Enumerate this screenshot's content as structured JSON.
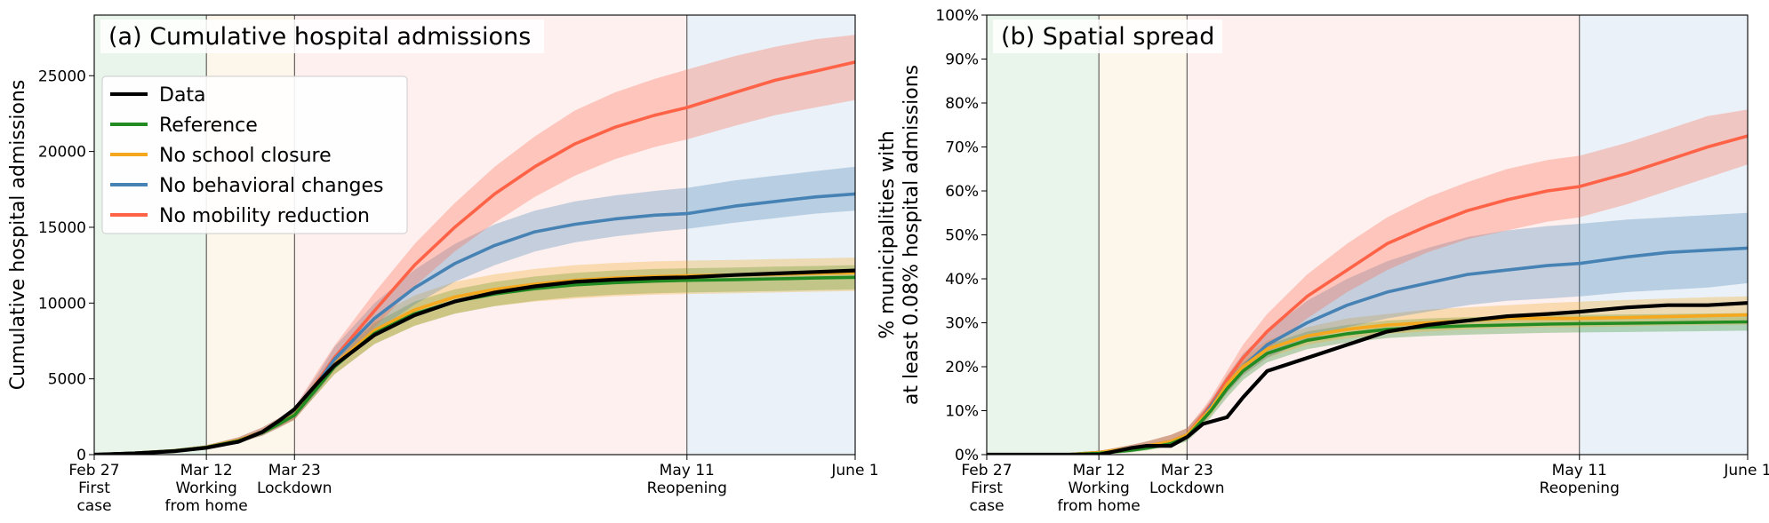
{
  "phase_colors": {
    "pre": "#e9f5ea",
    "wfh": "#fdf6ea",
    "lockdown": "#fdf0ef",
    "reopen": "#eaf1f8"
  },
  "chart_data": [
    {
      "type": "line",
      "title": "(a) Cumulative hospital admissions",
      "xlabel": "",
      "ylabel": "Cumulative hospital admissions",
      "xlim": [
        0,
        95
      ],
      "ylim": [
        0,
        29000
      ],
      "grid": false,
      "legend_position": "upper-left",
      "y_ticks": [
        0,
        5000,
        10000,
        15000,
        20000,
        25000
      ],
      "y_tick_labels": [
        "0",
        "5000",
        "10000",
        "15000",
        "20000",
        "25000"
      ],
      "x_ticks": [
        {
          "day": 0,
          "lines": [
            "Feb 27",
            "First",
            "case"
          ]
        },
        {
          "day": 14,
          "lines": [
            "Mar 12",
            "Working",
            "from home"
          ]
        },
        {
          "day": 25,
          "lines": [
            "Mar 23",
            "Lockdown"
          ]
        },
        {
          "day": 74,
          "lines": [
            "May 11",
            "Reopening"
          ]
        },
        {
          "day": 95,
          "lines": [
            "June 1"
          ]
        }
      ],
      "vlines": [
        14,
        25,
        74
      ],
      "phases": [
        {
          "from": 0,
          "to": 14,
          "color_key": "pre"
        },
        {
          "from": 14,
          "to": 25,
          "color_key": "wfh"
        },
        {
          "from": 25,
          "to": 74,
          "color_key": "lockdown"
        },
        {
          "from": 74,
          "to": 95,
          "color_key": "reopen"
        }
      ],
      "x": [
        0,
        5,
        10,
        14,
        18,
        21,
        23,
        25,
        28,
        30,
        35,
        40,
        45,
        50,
        55,
        60,
        65,
        70,
        74,
        80,
        85,
        90,
        95
      ],
      "series": [
        {
          "name": "Data",
          "color": "#000000",
          "values": [
            0,
            80,
            230,
            450,
            850,
            1500,
            2200,
            3000,
            4800,
            5900,
            7900,
            9200,
            10100,
            10700,
            11100,
            11400,
            11550,
            11650,
            11700,
            11850,
            11950,
            12050,
            12150
          ]
        },
        {
          "name": "Reference",
          "color": "#228b22",
          "values": [
            0,
            100,
            250,
            480,
            900,
            1450,
            2000,
            2600,
            4500,
            5800,
            8000,
            9300,
            10100,
            10600,
            10950,
            11200,
            11350,
            11450,
            11500,
            11550,
            11600,
            11650,
            11700
          ],
          "band_lower": [
            0,
            80,
            200,
            400,
            780,
            1280,
            1800,
            2350,
            4100,
            5300,
            7300,
            8500,
            9300,
            9800,
            10150,
            10400,
            10550,
            10650,
            10700,
            10750,
            10800,
            10850,
            10900
          ],
          "band_upper": [
            0,
            120,
            300,
            560,
            1020,
            1620,
            2200,
            2850,
            4900,
            6300,
            8700,
            10100,
            10900,
            11400,
            11750,
            12000,
            12150,
            12250,
            12300,
            12350,
            12400,
            12450,
            12500
          ]
        },
        {
          "name": "No school closure",
          "color": "#f5a81d",
          "values": [
            0,
            100,
            260,
            500,
            950,
            1500,
            2050,
            2650,
            4600,
            5950,
            8200,
            9550,
            10400,
            10900,
            11250,
            11500,
            11650,
            11750,
            11800,
            11850,
            11900,
            11950,
            12000
          ],
          "band_lower": [
            0,
            80,
            200,
            400,
            800,
            1300,
            1800,
            2300,
            4100,
            5300,
            7300,
            8500,
            9300,
            9800,
            10100,
            10300,
            10450,
            10550,
            10600,
            10650,
            10700,
            10750,
            10800
          ],
          "band_upper": [
            0,
            130,
            330,
            620,
            1120,
            1750,
            2350,
            3000,
            5200,
            6600,
            9100,
            10500,
            11400,
            11900,
            12250,
            12500,
            12650,
            12750,
            12800,
            12850,
            12900,
            12950,
            13000
          ]
        },
        {
          "name": "No behavioral changes",
          "color": "#4682b4",
          "values": [
            0,
            100,
            260,
            500,
            950,
            1500,
            2050,
            2700,
            4800,
            6300,
            9000,
            11000,
            12600,
            13800,
            14700,
            15200,
            15550,
            15800,
            15900,
            16400,
            16700,
            17000,
            17200
          ],
          "band_lower": [
            0,
            80,
            210,
            400,
            780,
            1250,
            1750,
            2300,
            4200,
            5600,
            8100,
            9900,
            11400,
            12500,
            13400,
            14000,
            14400,
            14700,
            14900,
            15300,
            15600,
            15900,
            16100
          ],
          "band_upper": [
            0,
            120,
            320,
            620,
            1150,
            1800,
            2400,
            3100,
            5400,
            7100,
            10000,
            12200,
            13900,
            15200,
            16100,
            16700,
            17100,
            17400,
            17600,
            18100,
            18400,
            18700,
            19000
          ]
        },
        {
          "name": "No mobility reduction",
          "color": "#ff6347",
          "values": [
            0,
            100,
            260,
            500,
            950,
            1500,
            2050,
            2700,
            4900,
            6400,
            9500,
            12500,
            15000,
            17200,
            19000,
            20500,
            21600,
            22400,
            22900,
            23900,
            24700,
            25300,
            25900
          ],
          "band_lower": [
            0,
            80,
            210,
            400,
            780,
            1250,
            1750,
            2300,
            4300,
            5600,
            8400,
            11100,
            13400,
            15300,
            17000,
            18400,
            19500,
            20300,
            20800,
            21700,
            22400,
            22900,
            23400
          ],
          "band_upper": [
            0,
            120,
            320,
            620,
            1150,
            1800,
            2400,
            3100,
            5600,
            7200,
            10700,
            13900,
            16600,
            19000,
            21000,
            22700,
            23900,
            24800,
            25400,
            26300,
            26900,
            27400,
            27700
          ]
        }
      ]
    },
    {
      "type": "line",
      "title": "(b) Spatial spread",
      "xlabel": "",
      "ylabel_lines": [
        "% municipalities with",
        "at least 0.08% hospital admissions"
      ],
      "xlim": [
        0,
        95
      ],
      "ylim": [
        0,
        100
      ],
      "grid": false,
      "y_ticks": [
        0,
        10,
        20,
        30,
        40,
        50,
        60,
        70,
        80,
        90,
        100
      ],
      "y_tick_labels": [
        "0%",
        "10%",
        "20%",
        "30%",
        "40%",
        "50%",
        "60%",
        "70%",
        "80%",
        "90%",
        "100%"
      ],
      "x_ticks": [
        {
          "day": 0,
          "lines": [
            "Feb 27",
            "First",
            "case"
          ]
        },
        {
          "day": 14,
          "lines": [
            "Mar 12",
            "Working",
            "from home"
          ]
        },
        {
          "day": 25,
          "lines": [
            "Mar 23",
            "Lockdown"
          ]
        },
        {
          "day": 74,
          "lines": [
            "May 11",
            "Reopening"
          ]
        },
        {
          "day": 95,
          "lines": [
            "June 1"
          ]
        }
      ],
      "vlines": [
        14,
        25,
        74
      ],
      "phases": [
        {
          "from": 0,
          "to": 14,
          "color_key": "pre"
        },
        {
          "from": 14,
          "to": 25,
          "color_key": "wfh"
        },
        {
          "from": 25,
          "to": 74,
          "color_key": "lockdown"
        },
        {
          "from": 74,
          "to": 95,
          "color_key": "reopen"
        }
      ],
      "x": [
        0,
        5,
        10,
        14,
        18,
        20,
        23,
        25,
        27,
        28,
        30,
        32,
        35,
        40,
        45,
        50,
        55,
        60,
        65,
        70,
        74,
        80,
        85,
        90,
        95
      ],
      "series": [
        {
          "name": "Data",
          "color": "#000000",
          "values": [
            0,
            0,
            0,
            0,
            1.5,
            2,
            2,
            4,
            7,
            7.5,
            8.5,
            13,
            19,
            22,
            25,
            28,
            29.5,
            30.5,
            31.5,
            32,
            32.5,
            33.5,
            34,
            34,
            34.5
          ]
        },
        {
          "name": "Reference",
          "color": "#228b22",
          "values": [
            0,
            0,
            0,
            0.3,
            1,
            1.5,
            2.5,
            4,
            8,
            10,
            15,
            19,
            23,
            26,
            27.5,
            28.5,
            29,
            29.3,
            29.5,
            29.7,
            29.8,
            29.9,
            30,
            30.1,
            30.2
          ],
          "band_lower": [
            0,
            0,
            0,
            0,
            0.5,
            1,
            2,
            3,
            6.5,
            8.5,
            13,
            17,
            21,
            24,
            25.5,
            26.5,
            27,
            27.3,
            27.5,
            27.7,
            27.8,
            27.9,
            28,
            28.1,
            28.2
          ],
          "band_upper": [
            0,
            0,
            0,
            0.6,
            1.5,
            2,
            3,
            5,
            9.5,
            11.5,
            17,
            21,
            25,
            28,
            29.5,
            30.5,
            31,
            31.3,
            31.5,
            31.7,
            31.8,
            31.9,
            32,
            32.1,
            32.2
          ]
        },
        {
          "name": "No school closure",
          "color": "#f5a81d",
          "values": [
            0,
            0,
            0,
            0.5,
            1.5,
            2,
            3,
            4.5,
            8.5,
            10.5,
            16,
            20,
            24,
            27,
            28.5,
            29.5,
            30,
            30.5,
            31,
            31,
            31,
            31.2,
            31.4,
            31.6,
            31.8
          ],
          "band_lower": [
            0,
            0,
            0,
            0.2,
            0.8,
            1.2,
            2,
            3.5,
            7,
            9,
            14,
            18,
            22,
            25,
            26.5,
            27.5,
            28,
            28.5,
            28.8,
            29,
            29,
            29.2,
            29.4,
            29.5,
            29.6
          ],
          "band_upper": [
            0,
            0,
            0,
            0.8,
            2.2,
            3,
            4.5,
            6,
            10,
            12,
            18,
            22,
            26,
            29,
            31,
            32,
            33,
            33.5,
            34,
            34.5,
            34.8,
            35.2,
            35.5,
            35.8,
            36
          ]
        },
        {
          "name": "No behavioral changes",
          "color": "#4682b4",
          "values": [
            0,
            0,
            0,
            0.5,
            1.5,
            2,
            3,
            4.5,
            8.5,
            11,
            16,
            20,
            25,
            30,
            34,
            37,
            39,
            41,
            42,
            43,
            43.5,
            45,
            46,
            46.5,
            47
          ],
          "band_lower": [
            0,
            0,
            0,
            0.2,
            0.8,
            1.2,
            2,
            3.5,
            7,
            9.5,
            14,
            18,
            22,
            26,
            29,
            31,
            32.5,
            34,
            35,
            35.5,
            36,
            37,
            37.5,
            38,
            39
          ],
          "band_upper": [
            0,
            0,
            0,
            0.8,
            2.2,
            3,
            4.5,
            6,
            10,
            12.5,
            18,
            23,
            28,
            35,
            40,
            44,
            47,
            49.5,
            51,
            52,
            52.5,
            53.5,
            54,
            54.5,
            55
          ]
        },
        {
          "name": "No mobility reduction",
          "color": "#ff6347",
          "values": [
            0,
            0,
            0,
            0.5,
            1.5,
            2,
            3,
            4.5,
            9,
            11.5,
            17,
            22,
            28,
            36,
            42,
            48,
            52,
            55.5,
            58,
            60,
            61,
            64,
            67,
            70,
            72.5
          ],
          "band_lower": [
            0,
            0,
            0,
            0.2,
            0.8,
            1.2,
            2,
            3.5,
            7.5,
            10,
            15,
            19,
            24,
            31,
            37,
            42,
            46,
            49,
            51,
            53,
            54,
            57,
            60,
            63,
            66
          ],
          "band_upper": [
            0,
            0,
            0,
            0.8,
            2.2,
            3,
            4.5,
            6,
            10.5,
            13,
            19,
            25,
            32,
            41,
            48,
            54,
            58.5,
            62,
            65,
            67,
            68,
            71,
            74,
            77,
            78.5
          ]
        }
      ]
    }
  ]
}
